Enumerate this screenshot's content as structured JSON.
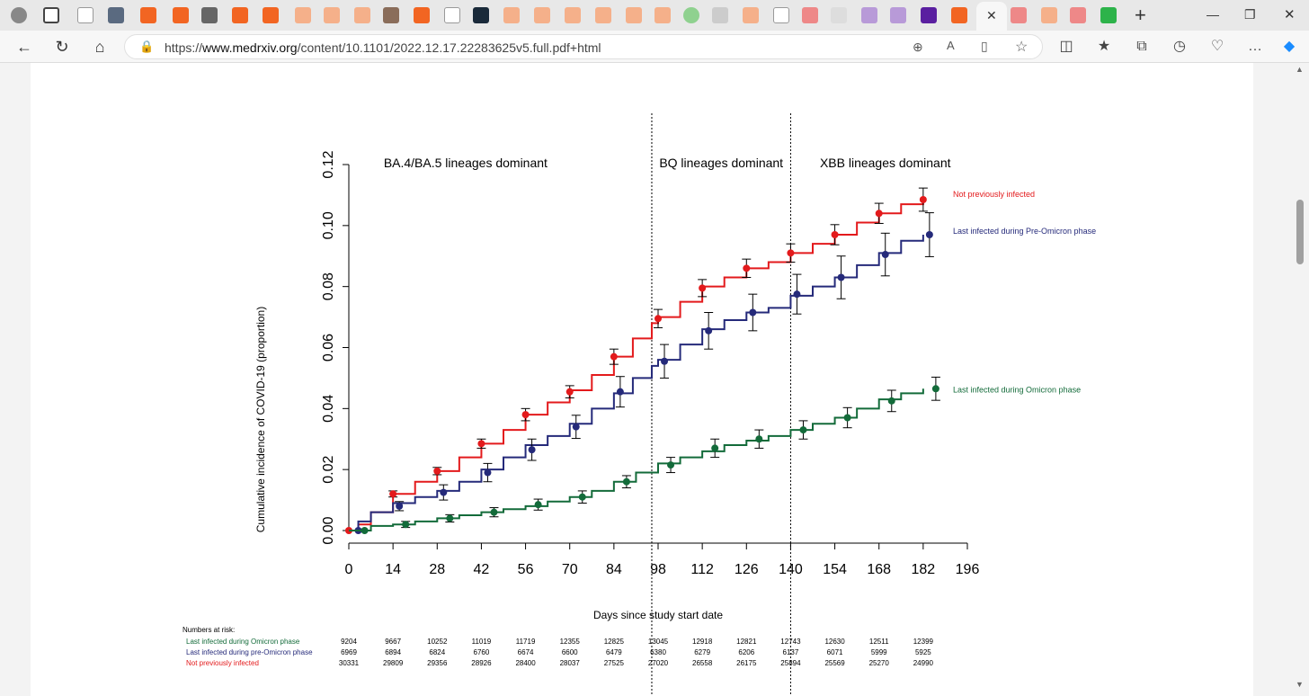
{
  "browser": {
    "url_prefix": "https://",
    "url_host": "www.medrxiv.org",
    "url_path": "/content/10.1101/2022.12.17.22283625v5.full.pdf+html"
  },
  "chart_data": {
    "type": "line",
    "title": "",
    "xlabel": "Days since study start date",
    "ylabel": "Cumulative incidence of COVID-19 (proportion)",
    "xlim": [
      0,
      196
    ],
    "ylim": [
      0,
      0.12
    ],
    "x_ticks": [
      0,
      14,
      28,
      42,
      56,
      70,
      84,
      98,
      112,
      126,
      140,
      154,
      168,
      182,
      196
    ],
    "y_ticks": [
      "0.00",
      "0.02",
      "0.04",
      "0.06",
      "0.08",
      "0.10",
      "0.12"
    ],
    "phase_lines": [
      96,
      140
    ],
    "phases": [
      {
        "label": "BA.4/BA.5 lineages dominant",
        "x": 37
      },
      {
        "label": "BQ lineages dominant",
        "x": 118
      },
      {
        "label": "XBB lineages dominant",
        "x": 170
      }
    ],
    "series": [
      {
        "name": "Not previously infected",
        "color": "#e31a1c",
        "curve": [
          [
            0,
            0
          ],
          [
            3,
            0.002
          ],
          [
            7,
            0.006
          ],
          [
            14,
            0.012
          ],
          [
            21,
            0.016
          ],
          [
            28,
            0.0195
          ],
          [
            35,
            0.024
          ],
          [
            42,
            0.0285
          ],
          [
            49,
            0.033
          ],
          [
            56,
            0.038
          ],
          [
            63,
            0.042
          ],
          [
            70,
            0.046
          ],
          [
            77,
            0.051
          ],
          [
            84,
            0.057
          ],
          [
            90,
            0.063
          ],
          [
            96,
            0.068
          ],
          [
            98,
            0.07
          ],
          [
            105,
            0.075
          ],
          [
            112,
            0.08
          ],
          [
            119,
            0.083
          ],
          [
            126,
            0.086
          ],
          [
            133,
            0.088
          ],
          [
            140,
            0.091
          ],
          [
            147,
            0.094
          ],
          [
            154,
            0.097
          ],
          [
            161,
            0.101
          ],
          [
            168,
            0.104
          ],
          [
            175,
            0.107
          ],
          [
            182,
            0.109
          ]
        ],
        "points": [
          [
            0,
            0,
            0
          ],
          [
            14,
            0.012,
            0.001
          ],
          [
            28,
            0.0195,
            0.0012
          ],
          [
            42,
            0.0285,
            0.0015
          ],
          [
            56,
            0.038,
            0.002
          ],
          [
            70,
            0.0455,
            0.002
          ],
          [
            84,
            0.057,
            0.0025
          ],
          [
            98,
            0.0695,
            0.003
          ],
          [
            112,
            0.0795,
            0.0028
          ],
          [
            126,
            0.086,
            0.003
          ],
          [
            140,
            0.091,
            0.003
          ],
          [
            154,
            0.097,
            0.0033
          ],
          [
            168,
            0.104,
            0.0033
          ],
          [
            182,
            0.1085,
            0.0038
          ]
        ]
      },
      {
        "name": "Last infected during Pre-Omicron phase",
        "color": "#252a7a",
        "curve": [
          [
            0,
            0
          ],
          [
            3,
            0.003
          ],
          [
            7,
            0.006
          ],
          [
            14,
            0.009
          ],
          [
            21,
            0.011
          ],
          [
            28,
            0.013
          ],
          [
            35,
            0.016
          ],
          [
            42,
            0.02
          ],
          [
            49,
            0.024
          ],
          [
            56,
            0.028
          ],
          [
            63,
            0.031
          ],
          [
            70,
            0.035
          ],
          [
            77,
            0.04
          ],
          [
            84,
            0.045
          ],
          [
            90,
            0.05
          ],
          [
            96,
            0.054
          ],
          [
            98,
            0.056
          ],
          [
            105,
            0.061
          ],
          [
            112,
            0.066
          ],
          [
            119,
            0.069
          ],
          [
            126,
            0.0715
          ],
          [
            133,
            0.073
          ],
          [
            140,
            0.077
          ],
          [
            147,
            0.08
          ],
          [
            154,
            0.083
          ],
          [
            161,
            0.087
          ],
          [
            168,
            0.091
          ],
          [
            175,
            0.095
          ],
          [
            182,
            0.097
          ]
        ],
        "points": [
          [
            3,
            0,
            0
          ],
          [
            16,
            0.008,
            0.0015
          ],
          [
            30,
            0.0125,
            0.0025
          ],
          [
            44,
            0.019,
            0.003
          ],
          [
            58,
            0.0265,
            0.0035
          ],
          [
            72,
            0.034,
            0.0038
          ],
          [
            86,
            0.0455,
            0.005
          ],
          [
            100,
            0.0555,
            0.0055
          ],
          [
            114,
            0.0655,
            0.006
          ],
          [
            128,
            0.0715,
            0.006
          ],
          [
            142,
            0.0775,
            0.0065
          ],
          [
            156,
            0.083,
            0.007
          ],
          [
            170,
            0.0905,
            0.007
          ],
          [
            184,
            0.097,
            0.0072
          ]
        ]
      },
      {
        "name": "Last infected during Omicron phase",
        "color": "#136b3a",
        "curve": [
          [
            0,
            0
          ],
          [
            7,
            0.0015
          ],
          [
            14,
            0.002
          ],
          [
            21,
            0.003
          ],
          [
            28,
            0.004
          ],
          [
            35,
            0.005
          ],
          [
            42,
            0.006
          ],
          [
            49,
            0.007
          ],
          [
            56,
            0.008
          ],
          [
            63,
            0.0095
          ],
          [
            70,
            0.011
          ],
          [
            77,
            0.013
          ],
          [
            84,
            0.016
          ],
          [
            91,
            0.019
          ],
          [
            98,
            0.022
          ],
          [
            105,
            0.024
          ],
          [
            112,
            0.026
          ],
          [
            119,
            0.028
          ],
          [
            126,
            0.0295
          ],
          [
            133,
            0.031
          ],
          [
            140,
            0.033
          ],
          [
            147,
            0.035
          ],
          [
            154,
            0.037
          ],
          [
            161,
            0.04
          ],
          [
            168,
            0.043
          ],
          [
            175,
            0.045
          ],
          [
            182,
            0.0465
          ]
        ],
        "points": [
          [
            5,
            0,
            0
          ],
          [
            18,
            0.002,
            0.001
          ],
          [
            32,
            0.004,
            0.0012
          ],
          [
            46,
            0.006,
            0.0015
          ],
          [
            60,
            0.0085,
            0.0018
          ],
          [
            74,
            0.011,
            0.002
          ],
          [
            88,
            0.016,
            0.002
          ],
          [
            102,
            0.0215,
            0.0025
          ],
          [
            116,
            0.027,
            0.003
          ],
          [
            130,
            0.03,
            0.003
          ],
          [
            144,
            0.033,
            0.003
          ],
          [
            158,
            0.037,
            0.0033
          ],
          [
            172,
            0.0425,
            0.0035
          ],
          [
            186,
            0.0465,
            0.0038
          ]
        ]
      }
    ],
    "numbers_at_risk": {
      "title": "Numbers at risk:",
      "rows": [
        {
          "label": "Last infected during Omicron phase",
          "color": "#136b3a",
          "values": [
            "9204",
            "9667",
            "10252",
            "11019",
            "11719",
            "12355",
            "12825",
            "13045",
            "12918",
            "12821",
            "12743",
            "12630",
            "12511",
            "12399"
          ]
        },
        {
          "label": "Last infected during pre-Omicron phase",
          "color": "#252a7a",
          "values": [
            "6969",
            "6894",
            "6824",
            "6760",
            "6674",
            "6600",
            "6479",
            "6380",
            "6279",
            "6206",
            "6137",
            "6071",
            "5999",
            "5925"
          ]
        },
        {
          "label": "Not previously infected",
          "color": "#e31a1c",
          "values": [
            "30331",
            "29809",
            "29356",
            "28926",
            "28400",
            "28037",
            "27525",
            "27020",
            "26558",
            "26175",
            "25894",
            "25569",
            "25270",
            "24990"
          ]
        }
      ]
    }
  }
}
